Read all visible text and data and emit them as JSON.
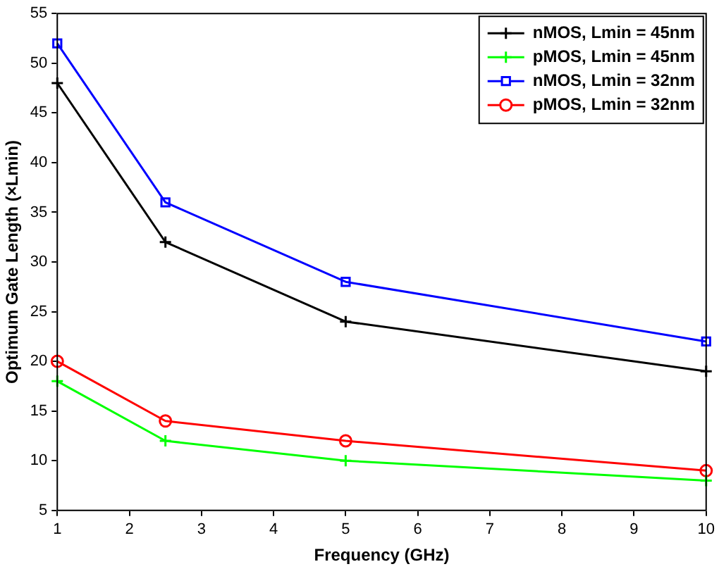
{
  "chart_data": {
    "type": "line",
    "xlabel": "Frequency (GHz)",
    "ylabel": "Optimum Gate Length (×Lmin)",
    "x": [
      1,
      2.5,
      5,
      10
    ],
    "series": [
      {
        "name": "nMOS, Lmin = 45nm",
        "color": "#000000",
        "marker": "cross",
        "values": [
          48,
          32,
          24,
          19
        ]
      },
      {
        "name": "pMOS, Lmin = 45nm",
        "color": "#00ff00",
        "marker": "cross",
        "values": [
          18,
          12,
          10,
          8
        ]
      },
      {
        "name": "nMOS, Lmin = 32nm",
        "color": "#0000ff",
        "marker": "square",
        "values": [
          52,
          36,
          28,
          22
        ]
      },
      {
        "name": "pMOS, Lmin = 32nm",
        "color": "#ff0000",
        "marker": "circle",
        "values": [
          20,
          14,
          12,
          9
        ]
      }
    ],
    "xlim": [
      1,
      10
    ],
    "xticks": [
      1,
      2,
      3,
      4,
      5,
      6,
      7,
      8,
      9,
      10
    ],
    "ylim": [
      5,
      55
    ],
    "yticks": [
      5,
      10,
      15,
      20,
      25,
      30,
      35,
      40,
      45,
      50,
      55
    ],
    "grid": false,
    "legend": "top right",
    "line_style": "solid"
  }
}
